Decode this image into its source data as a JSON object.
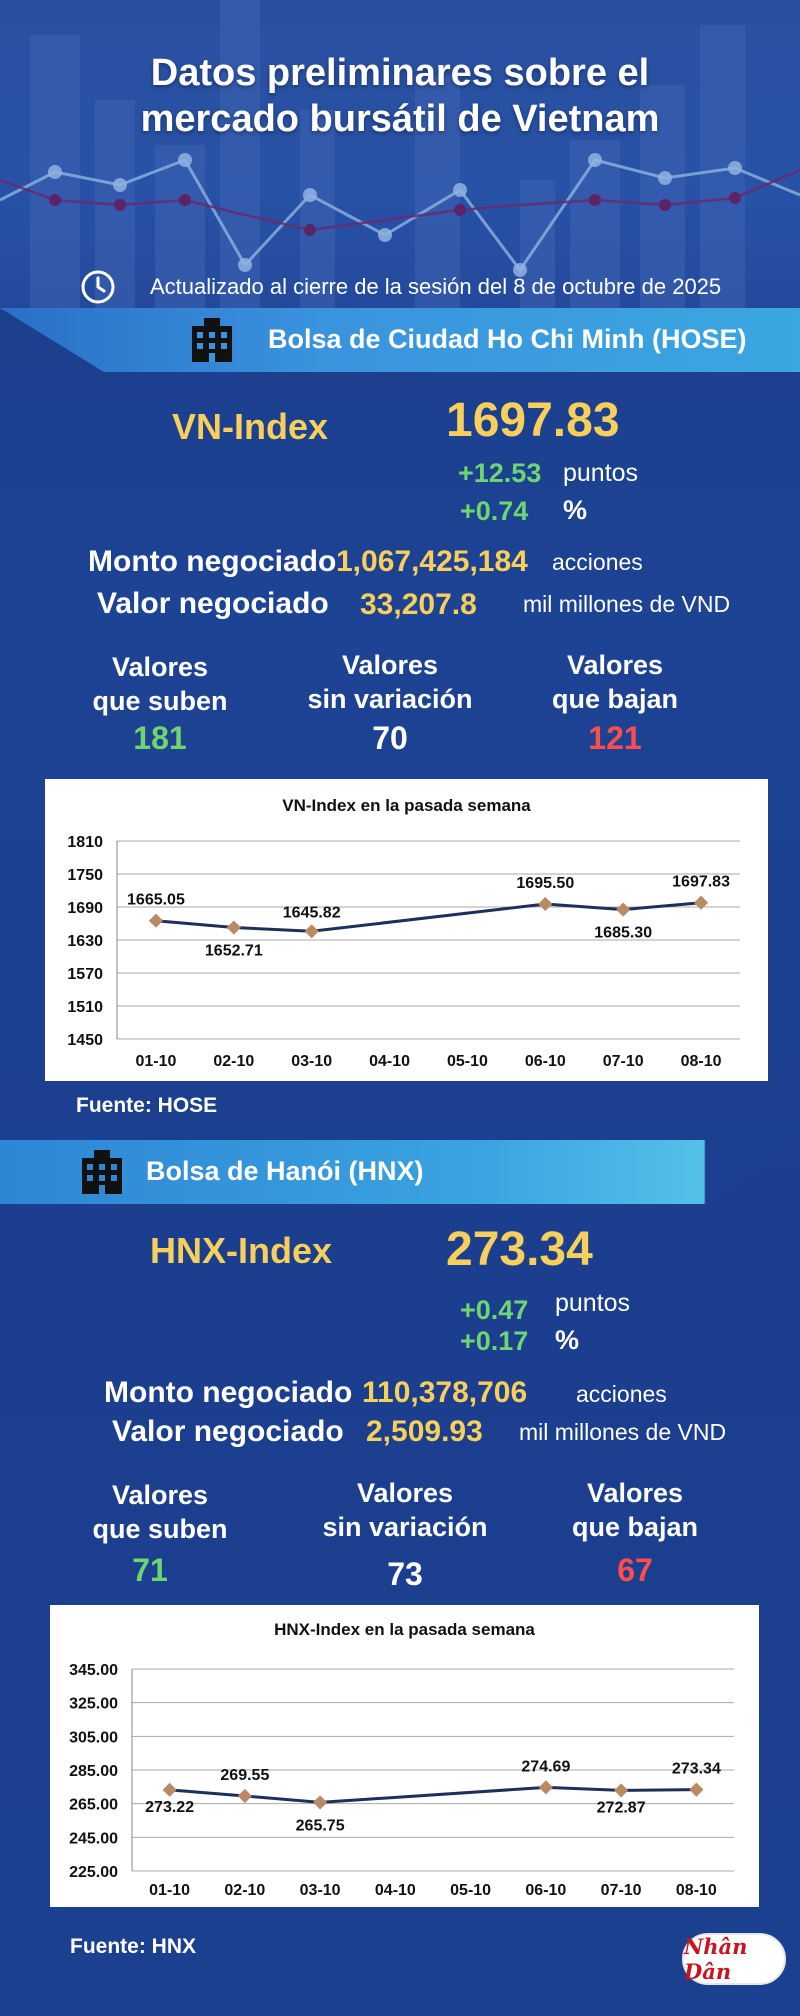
{
  "header": {
    "title_line1": "Datos preliminares sobre el",
    "title_line2": "mercado bursátil de Vietnam",
    "updated": "Actualizado al cierre de la sesión del 8 de octubre de 2025"
  },
  "hose": {
    "banner": "Bolsa de Ciudad Ho Chi Minh (HOSE)",
    "index_name": "VN-Index",
    "index_value": "1697.83",
    "change_points": "+12.53",
    "points_unit": "puntos",
    "change_pct": "+0.74",
    "pct_unit": "%",
    "volume_label": "Monto negociado",
    "volume_value": "1,067,425,184",
    "volume_unit": "acciones",
    "value_label": "Valor negociado",
    "value_value": "33,207.8",
    "value_unit": "mil millones de VND",
    "up_label_1": "Valores",
    "up_label_2": "que suben",
    "up_count": "181",
    "flat_label_1": "Valores",
    "flat_label_2": "sin variación",
    "flat_count": "70",
    "down_label_1": "Valores",
    "down_label_2": "que bajan",
    "down_count": "121",
    "source": "Fuente: HOSE"
  },
  "hnx": {
    "banner": "Bolsa de Hanói (HNX)",
    "index_name": "HNX-Index",
    "index_value": "273.34",
    "change_points": "+0.47",
    "points_unit": "puntos",
    "change_pct": "+0.17",
    "pct_unit": "%",
    "volume_label": "Monto negociado",
    "volume_value": "110,378,706",
    "volume_unit": "acciones",
    "value_label": "Valor negociado",
    "value_value": "2,509.93",
    "value_unit": "mil millones de VND",
    "up_label_1": "Valores",
    "up_label_2": "que suben",
    "up_count": "71",
    "flat_label_1": "Valores",
    "flat_label_2": "sin variación",
    "flat_count": "73",
    "down_label_1": "Valores",
    "down_label_2": "que bajan",
    "down_count": "67",
    "source": "Fuente:  HNX"
  },
  "logo": {
    "text": "Nhân Dân"
  },
  "colors": {
    "accent": "#f7cf5a",
    "up": "#6fd66f",
    "down": "#ff4d4d",
    "background": "#1c3f8f",
    "line": "#1f2f5c",
    "marker": "#b98a63"
  },
  "icons": {
    "clock": "clock-icon",
    "building": "building-icon"
  },
  "chart_data": [
    {
      "type": "line",
      "title": "VN-Index en la pasada semana",
      "categories": [
        "01-10",
        "02-10",
        "03-10",
        "04-10",
        "05-10",
        "06-10",
        "07-10",
        "08-10"
      ],
      "yticks": [
        "1810",
        "1750",
        "1690",
        "1630",
        "1570",
        "1510",
        "1450"
      ],
      "ylim": [
        1450,
        1810
      ],
      "points": [
        {
          "x": "01-10",
          "y": 1665.05,
          "label": "1665.05"
        },
        {
          "x": "02-10",
          "y": 1652.71,
          "label": "1652.71"
        },
        {
          "x": "03-10",
          "y": 1645.82,
          "label": "1645.82"
        },
        {
          "x": "06-10",
          "y": 1695.5,
          "label": "1695.50"
        },
        {
          "x": "07-10",
          "y": 1685.3,
          "label": "1685.30"
        },
        {
          "x": "08-10",
          "y": 1697.83,
          "label": "1697.83"
        }
      ],
      "grid": true
    },
    {
      "type": "line",
      "title": "HNX-Index en la pasada semana",
      "categories": [
        "01-10",
        "02-10",
        "03-10",
        "04-10",
        "05-10",
        "06-10",
        "07-10",
        "08-10"
      ],
      "yticks": [
        "345.00",
        "325.00",
        "305.00",
        "285.00",
        "265.00",
        "245.00",
        "225.00"
      ],
      "ylim": [
        225,
        345
      ],
      "points": [
        {
          "x": "01-10",
          "y": 273.22,
          "label": "273.22"
        },
        {
          "x": "02-10",
          "y": 269.55,
          "label": "269.55"
        },
        {
          "x": "03-10",
          "y": 265.75,
          "label": "265.75"
        },
        {
          "x": "06-10",
          "y": 274.69,
          "label": "274.69"
        },
        {
          "x": "07-10",
          "y": 272.87,
          "label": "272.87"
        },
        {
          "x": "08-10",
          "y": 273.34,
          "label": "273.34"
        }
      ],
      "grid": true
    }
  ]
}
